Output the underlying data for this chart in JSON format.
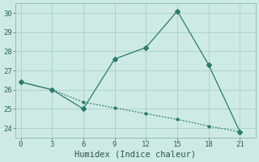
{
  "xlabel": "Humidex (Indice chaleur)",
  "x": [
    0,
    3,
    6,
    9,
    12,
    15,
    18,
    21
  ],
  "y_line": [
    26.4,
    26.0,
    25.0,
    27.6,
    28.2,
    30.1,
    27.3,
    23.8
  ],
  "y_trend": [
    26.4,
    26.0,
    25.35,
    25.05,
    24.75,
    24.45,
    24.1,
    23.8
  ],
  "line_color": "#2a7a6a",
  "bg_color": "#ceeae4",
  "grid_color": "#aad4cc",
  "ylim": [
    23.5,
    30.5
  ],
  "xlim": [
    -0.5,
    22.5
  ],
  "yticks": [
    24,
    25,
    26,
    27,
    28,
    29,
    30
  ],
  "xticks": [
    0,
    3,
    6,
    9,
    12,
    15,
    18,
    21
  ],
  "tick_fontsize": 6.5,
  "xlabel_fontsize": 7.5
}
